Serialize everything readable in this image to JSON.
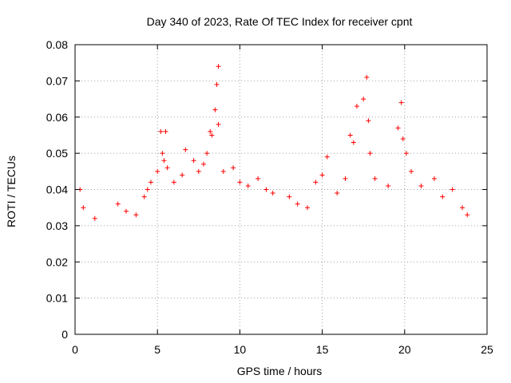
{
  "chart_data": {
    "type": "scatter",
    "title": "Day 340 of 2023, Rate Of TEC Index for receiver cpnt",
    "xlabel": "GPS time / hours",
    "ylabel": "ROTI / TECUs",
    "xlim": [
      0,
      25
    ],
    "ylim": [
      0,
      0.08
    ],
    "xticks": [
      0,
      5,
      10,
      15,
      20,
      25
    ],
    "xtick_labels": [
      "0",
      "5",
      "10",
      "15",
      "20",
      "25"
    ],
    "yticks": [
      0,
      0.01,
      0.02,
      0.03,
      0.04,
      0.05,
      0.06,
      0.07,
      0.08
    ],
    "ytick_labels": [
      "0",
      "0.01",
      "0.02",
      "0.03",
      "0.04",
      "0.05",
      "0.06",
      "0.07",
      "0.08"
    ],
    "grid": true,
    "marker": "+",
    "color": "#ff0000",
    "series": [
      {
        "name": "ROTI",
        "x": [
          0.3,
          0.5,
          1.2,
          2.6,
          3.1,
          3.7,
          4.2,
          4.4,
          4.6,
          5.0,
          5.2,
          5.3,
          5.4,
          5.5,
          5.6,
          6.0,
          6.5,
          6.7,
          7.2,
          7.5,
          7.8,
          8.0,
          8.2,
          8.3,
          8.5,
          8.6,
          8.7,
          8.7,
          9.0,
          9.6,
          10.0,
          10.5,
          11.1,
          11.6,
          12.0,
          13.0,
          13.5,
          14.1,
          14.6,
          15.0,
          15.3,
          15.9,
          16.4,
          16.7,
          16.9,
          17.1,
          17.5,
          17.7,
          17.8,
          17.9,
          18.2,
          19.0,
          19.6,
          19.8,
          19.9,
          20.1,
          20.4,
          21.0,
          21.8,
          22.3,
          22.9,
          23.5,
          23.8
        ],
        "y": [
          0.04,
          0.035,
          0.032,
          0.036,
          0.034,
          0.033,
          0.038,
          0.04,
          0.042,
          0.045,
          0.056,
          0.05,
          0.048,
          0.056,
          0.046,
          0.042,
          0.044,
          0.051,
          0.048,
          0.045,
          0.047,
          0.05,
          0.056,
          0.055,
          0.062,
          0.069,
          0.074,
          0.058,
          0.045,
          0.046,
          0.042,
          0.041,
          0.043,
          0.04,
          0.039,
          0.038,
          0.036,
          0.035,
          0.042,
          0.044,
          0.049,
          0.039,
          0.043,
          0.055,
          0.053,
          0.063,
          0.065,
          0.071,
          0.059,
          0.05,
          0.043,
          0.041,
          0.057,
          0.064,
          0.054,
          0.05,
          0.045,
          0.041,
          0.043,
          0.038,
          0.04,
          0.035,
          0.033
        ]
      }
    ]
  }
}
